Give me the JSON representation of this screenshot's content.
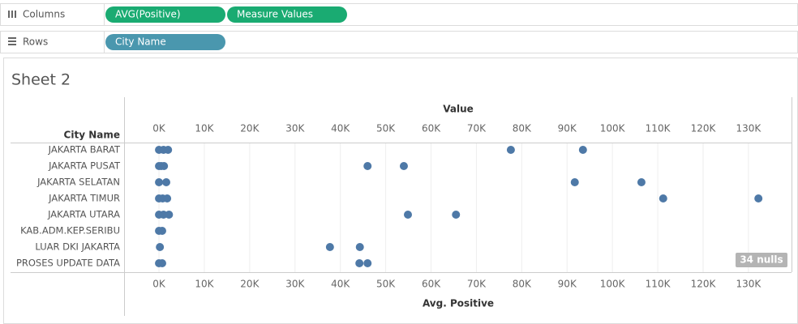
{
  "shelves": {
    "columns": {
      "label": "Columns",
      "pills": [
        "AVG(Positive)",
        "Measure Values"
      ]
    },
    "rows": {
      "label": "Rows",
      "pills": [
        "City Name"
      ]
    }
  },
  "chart_data": {
    "type": "dot",
    "title": "Sheet 2",
    "row_header": "City Name",
    "x_label_top": "Value",
    "x_label": "Avg. Positive",
    "color": "#4e79a7",
    "grid": true,
    "categories": [
      "JAKARTA BARAT",
      "JAKARTA PUSAT",
      "JAKARTA SELATAN",
      "JAKARTA TIMUR",
      "JAKARTA UTARA",
      "KAB.ADM.KEP.SERIBU",
      "LUAR DKI JAKARTA",
      "PROSES UPDATE DATA"
    ],
    "values": [
      [
        0,
        1000,
        2000,
        77600,
        93500
      ],
      [
        0,
        500,
        1100,
        46000,
        54000
      ],
      [
        0,
        1600,
        91700,
        106400
      ],
      [
        0,
        800,
        1800,
        111200,
        132200
      ],
      [
        0,
        1000,
        2200,
        54900,
        65500
      ],
      [
        0,
        700
      ],
      [
        200,
        37700,
        44300
      ],
      [
        0,
        700,
        44200,
        46000
      ]
    ],
    "xlim": [
      -7700,
      139500
    ],
    "xticks": [
      {
        "value": 0,
        "label": "0K"
      },
      {
        "value": 10000,
        "label": "10K"
      },
      {
        "value": 20000,
        "label": "20K"
      },
      {
        "value": 30000,
        "label": "30K"
      },
      {
        "value": 40000,
        "label": "40K"
      },
      {
        "value": 50000,
        "label": "50K"
      },
      {
        "value": 60000,
        "label": "60K"
      },
      {
        "value": 70000,
        "label": "70K"
      },
      {
        "value": 80000,
        "label": "80K"
      },
      {
        "value": 90000,
        "label": "90K"
      },
      {
        "value": 100000,
        "label": "100K"
      },
      {
        "value": 110000,
        "label": "110K"
      },
      {
        "value": 120000,
        "label": "120K"
      },
      {
        "value": 130000,
        "label": "130K"
      }
    ],
    "nulls_indicator": "34 nulls"
  }
}
